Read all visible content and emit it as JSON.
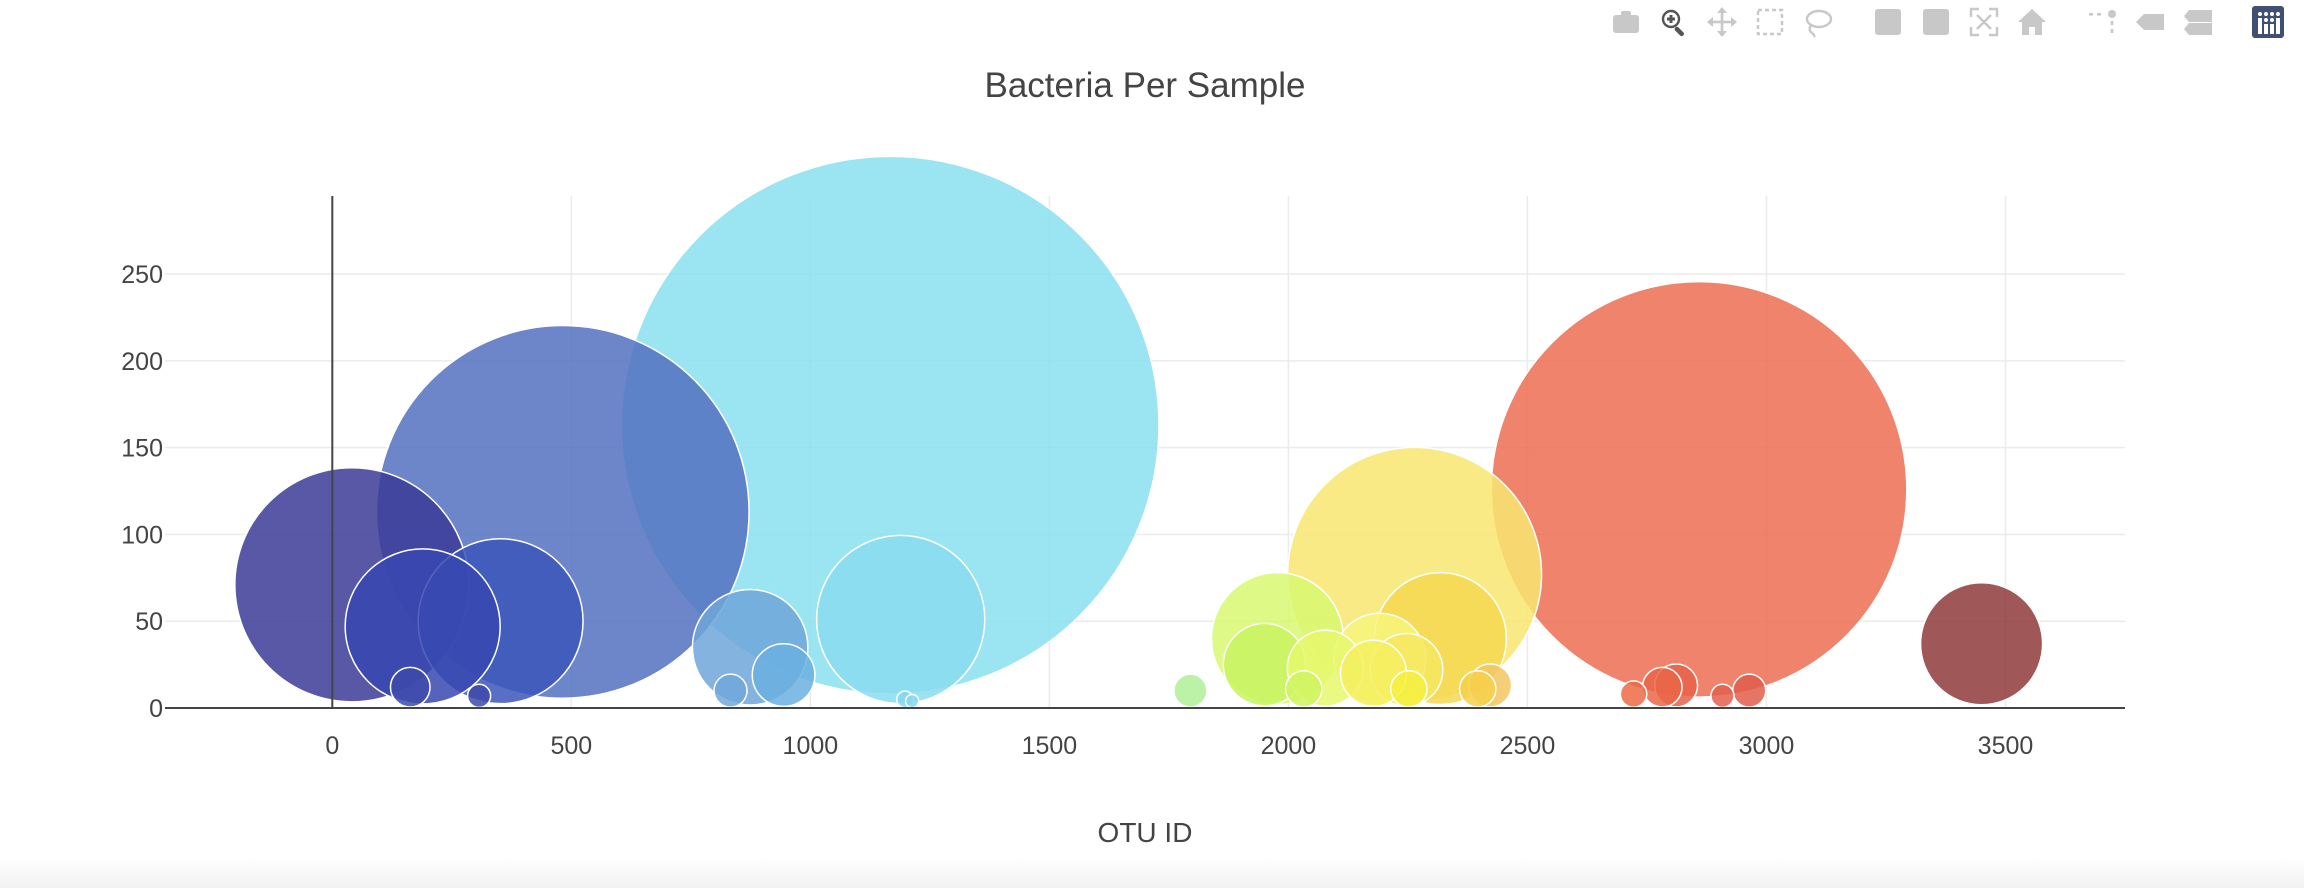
{
  "modebar": {
    "buttons": [
      {
        "name": "camera-icon",
        "group": 0
      },
      {
        "name": "zoom-icon",
        "group": 0,
        "active": true
      },
      {
        "name": "pan-icon",
        "group": 0
      },
      {
        "name": "box-select-icon",
        "group": 0
      },
      {
        "name": "lasso-select-icon",
        "group": 0
      },
      {
        "name": "zoom-in-icon",
        "group": 1
      },
      {
        "name": "zoom-out-icon",
        "group": 1
      },
      {
        "name": "autoscale-icon",
        "group": 1
      },
      {
        "name": "reset-axes-icon",
        "group": 1
      },
      {
        "name": "spike-lines-icon",
        "group": 2
      },
      {
        "name": "hover-closest-icon",
        "group": 2
      },
      {
        "name": "hover-compare-icon",
        "group": 2
      },
      {
        "name": "plotly-logo-icon",
        "group": 3
      }
    ]
  },
  "chart_data": {
    "type": "scatter",
    "title": "Bacteria Per Sample",
    "xlabel": "OTU ID",
    "ylabel": "",
    "xlim": [
      -350,
      3750
    ],
    "ylim": [
      0,
      295
    ],
    "xticks": [
      0,
      500,
      1000,
      1500,
      2000,
      2500,
      3000,
      3500
    ],
    "yticks": [
      0,
      50,
      100,
      150,
      200,
      250
    ],
    "grid": true,
    "legend": "none",
    "colorscale": "Earth",
    "series": [
      {
        "marker": "bubble",
        "x": [
          41,
          189,
          352,
          482,
          874,
          944,
          1167,
          1189,
          1795,
          1977,
          1950,
          2032,
          2077,
          2191,
          2178,
          2264,
          2318,
          2247,
          2252,
          2396,
          2422,
          2859,
          2722,
          2782,
          2811,
          2964,
          2908,
          3450,
          163,
          307,
          833,
          1198,
          1213
        ],
        "y": [
          71,
          47,
          50,
          113,
          35,
          19,
          163,
          51,
          10,
          40,
          25,
          11,
          23,
          28,
          20,
          77,
          40,
          22,
          11,
          11,
          13,
          126,
          8,
          12,
          13,
          10,
          7,
          37,
          12,
          7,
          10,
          5,
          4
        ],
        "color": [
          "#3c3b98",
          "#3748b0",
          "#3b56b8",
          "#5271c0",
          "#6ea6d9",
          "#6ab0e0",
          "#8ae1f0",
          "#88dcef",
          "#b0f098",
          "#d8f870",
          "#c8f560",
          "#d0f560",
          "#e6f86c",
          "#f7f47a",
          "#f5f060",
          "#f8e670",
          "#f5d850",
          "#f6e860",
          "#f5f040",
          "#f6d04a",
          "#f3c560",
          "#ed6d52",
          "#ec6a45",
          "#ea6648",
          "#e8614a",
          "#e25d4b",
          "#e3604c",
          "#8e3a3a",
          "#3e4aaa",
          "#3e4aaa",
          "#70a8db",
          "#86d8ee",
          "#86d8ee"
        ]
      }
    ]
  }
}
